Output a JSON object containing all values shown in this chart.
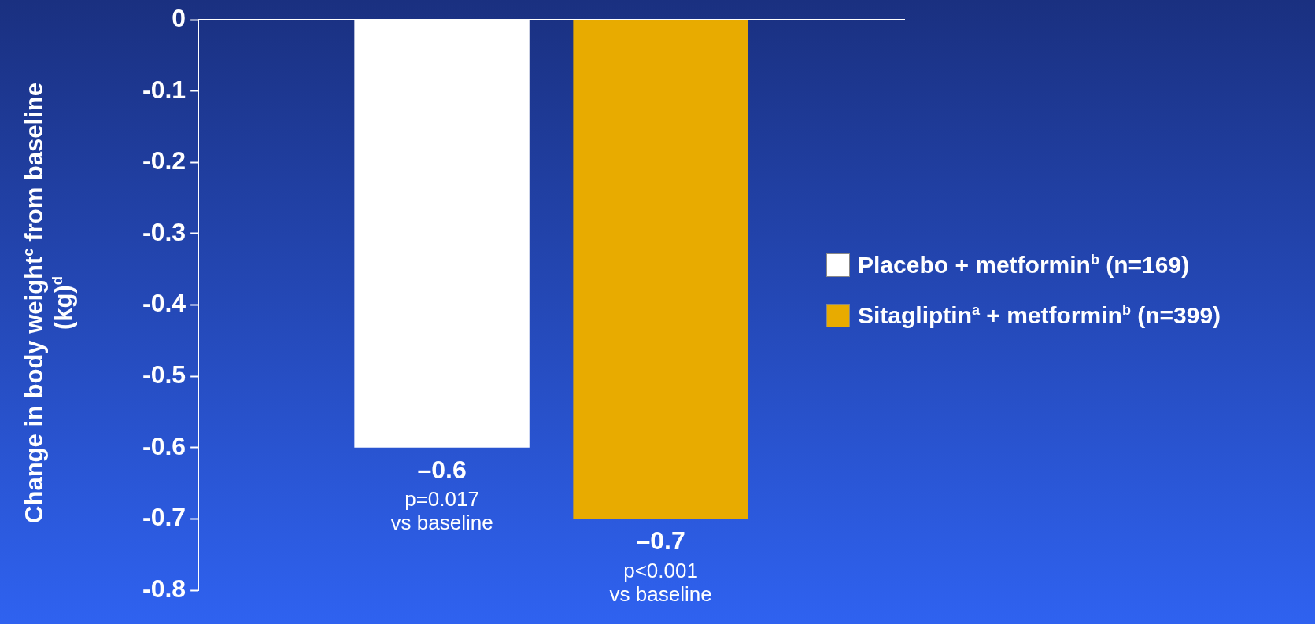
{
  "chart_data": {
    "type": "bar",
    "ylabel": "Change in body weight$^{c}$ from baseline (kg)$^{d}$",
    "categories": [
      null
    ],
    "series": [
      {
        "name": "Placebo + metformin$^{b}$ (n=169)",
        "color": "#ffffff",
        "values": [
          -0.6
        ],
        "value_labels": [
          "–0.6"
        ]
      },
      {
        "name": "Sitagliptin$^{a}$ + metformin$^{b}$ (n=399)",
        "color": "#e8ab00",
        "values": [
          -0.7
        ],
        "value_labels": [
          "–0.7"
        ]
      }
    ],
    "annotations": [
      "p=0.017\nvs baseline",
      "p<0.001\nvs baseline"
    ],
    "ylim": [
      -0.8,
      0
    ],
    "yticks": [
      0,
      -0.1,
      -0.2,
      -0.3,
      -0.4,
      -0.5,
      -0.6,
      -0.7,
      -0.8
    ],
    "grid": false,
    "legend": "right"
  }
}
